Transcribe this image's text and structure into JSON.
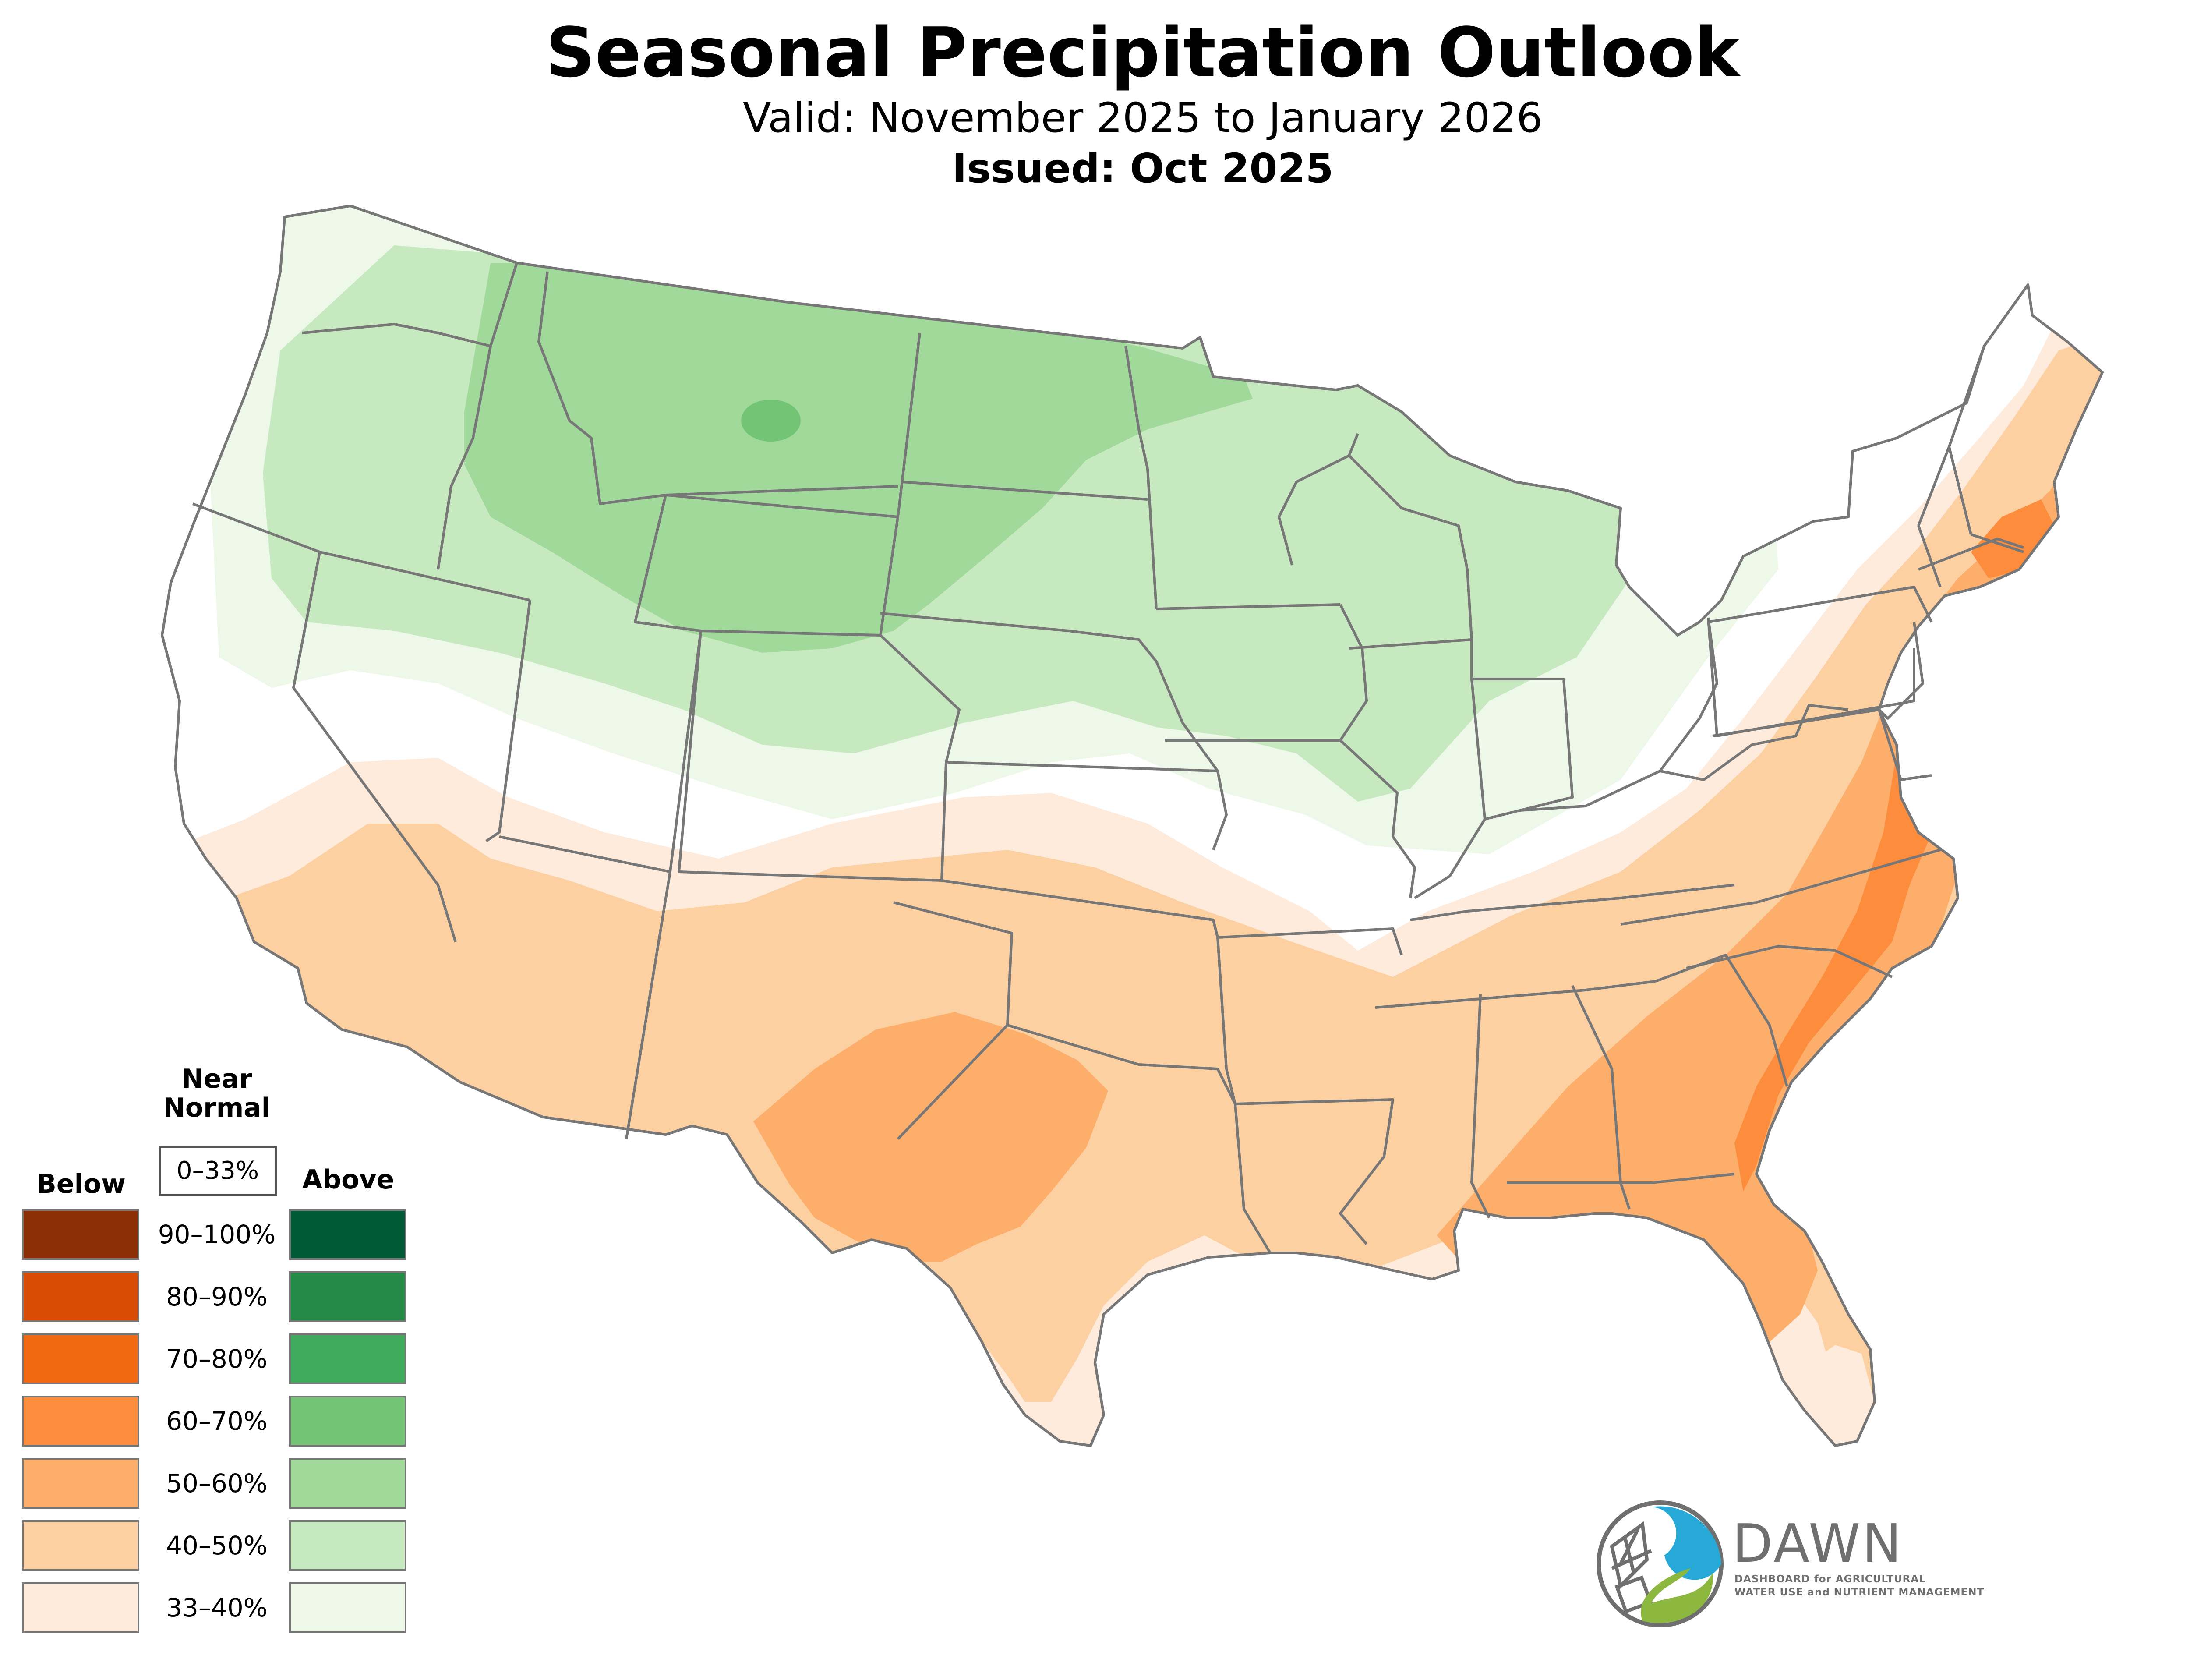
{
  "title": "Seasonal Precipitation Outlook",
  "valid": "Valid: November 2025 to January 2026",
  "issued": "Issued: Oct 2025",
  "map": {
    "region": "Contiguous United States",
    "zones": [
      {
        "category": "above",
        "range": "33–40%"
      },
      {
        "category": "above",
        "range": "40–50%"
      },
      {
        "category": "above",
        "range": "50–60%"
      },
      {
        "category": "above",
        "range": "60–70%"
      },
      {
        "category": "below",
        "range": "33–40%"
      },
      {
        "category": "below",
        "range": "40–50%"
      },
      {
        "category": "below",
        "range": "50–60%"
      },
      {
        "category": "below",
        "range": "60–70%"
      }
    ],
    "state_border_color": "#777777"
  },
  "legend": {
    "near_normal_line1": "Near",
    "near_normal_line2": "Normal",
    "near_normal_range": "0–33%",
    "below_label": "Below",
    "above_label": "Above",
    "rows": [
      {
        "range": "90–100%",
        "below_color": "#8b2e06",
        "above_color": "#005a36"
      },
      {
        "range": "80–90%",
        "below_color": "#d94c03",
        "above_color": "#238b45"
      },
      {
        "range": "70–80%",
        "below_color": "#f16913",
        "above_color": "#41ab5d"
      },
      {
        "range": "60–70%",
        "below_color": "#fd8d3c",
        "above_color": "#74c476"
      },
      {
        "range": "50–60%",
        "below_color": "#fdae6b",
        "above_color": "#a1d99b"
      },
      {
        "range": "40–50%",
        "below_color": "#fdd0a2",
        "above_color": "#c7e9c0"
      },
      {
        "range": "33–40%",
        "below_color": "#feebdc",
        "above_color": "#edf8e9"
      }
    ]
  },
  "logo": {
    "name": "DAWN",
    "tagline_line1": "DASHBOARD for AGRICULTURAL",
    "tagline_line2": "WATER USE and NUTRIENT MANAGEMENT",
    "colors": {
      "blue": "#27a9d8",
      "green": "#8cb83f",
      "gray": "#6f6f6f"
    }
  }
}
